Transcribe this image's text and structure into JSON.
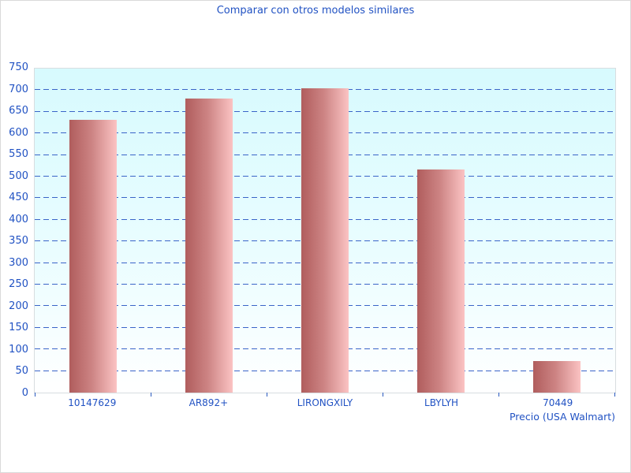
{
  "chart_data": {
    "type": "bar",
    "title": "Comparar con otros modelos similares",
    "categories": [
      "10147629",
      "AR892+",
      "LIRONGXILY",
      "LBYLYH",
      "70449"
    ],
    "values": [
      631,
      680,
      704,
      517,
      73
    ],
    "xlabel": "Precio (USA Walmart)",
    "ylabel": "",
    "ylim": [
      0,
      750
    ],
    "yticks": [
      0,
      50,
      100,
      150,
      200,
      250,
      300,
      350,
      400,
      450,
      500,
      550,
      600,
      650,
      700,
      750
    ],
    "grid": "horizontal-dashed",
    "legend": "none",
    "colors": {
      "text": "#2152c3",
      "gridline": "#3a64c8",
      "tick": "#2a5ac0",
      "bar_gradient_left": "#b05d5d",
      "bar_gradient_right": "#fbc3c3",
      "plot_bg_top": "#d7fafe",
      "plot_bg_bottom": "#ffffff",
      "plot_border": "#d8dde0",
      "page_border": "#d9d9d9"
    }
  }
}
